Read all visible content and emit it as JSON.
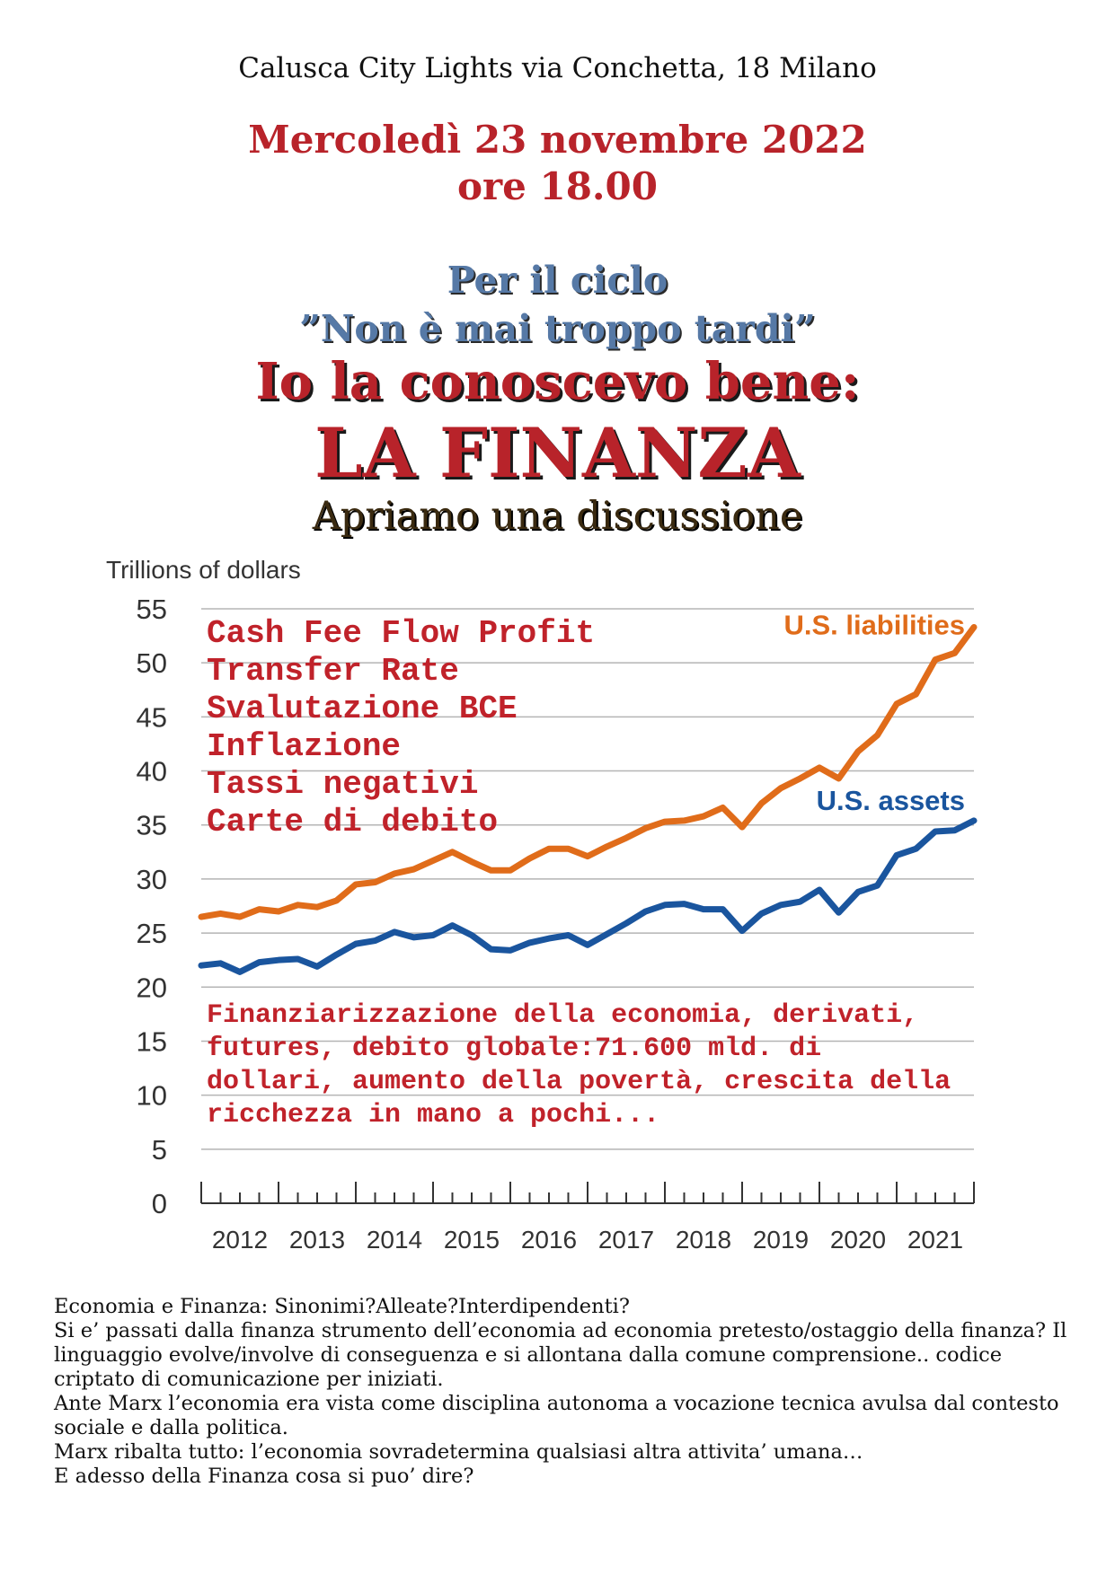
{
  "header": {
    "venue": "Calusca City Lights via Conchetta, 18 Milano",
    "date": "Mercoledì 23 novembre 2022",
    "time": "ore 18.00"
  },
  "cycle": {
    "line1": "Per il ciclo",
    "line2": "”Non è mai troppo tardi”"
  },
  "title": {
    "line1": "Io la conoscevo bene:",
    "line2": "LA FINANZA",
    "subtitle": "Apriamo una discussione"
  },
  "keywords": [
    "Cash Fee Flow Profit",
    "Transfer Rate",
    "Svalutazione BCE",
    "Inflazione",
    "Tassi negativi",
    "Carte di debito"
  ],
  "note": "Finanziarizzazione della economia, derivati, futures, debito globale:71.600 mld. di dollari, aumento della povertà, crescita della ricchezza in mano a pochi...",
  "chart_data": {
    "type": "line",
    "ylabel": "Trillions of dollars",
    "ylim": [
      0,
      55
    ],
    "yticks": [
      0,
      5,
      10,
      15,
      20,
      25,
      30,
      35,
      40,
      45,
      50,
      55
    ],
    "xlim": [
      2011.5,
      2021.5
    ],
    "xtick_labels": [
      "2012",
      "2013",
      "2014",
      "2015",
      "2016",
      "2017",
      "2018",
      "2019",
      "2020",
      "2021"
    ],
    "grid": true,
    "series": [
      {
        "name": "U.S. liabilities",
        "color": "#e06c1a",
        "x": [
          2011.5,
          2011.75,
          2012.0,
          2012.25,
          2012.5,
          2012.75,
          2013.0,
          2013.25,
          2013.5,
          2013.75,
          2014.0,
          2014.25,
          2014.5,
          2014.75,
          2015.0,
          2015.25,
          2015.5,
          2015.75,
          2016.0,
          2016.25,
          2016.5,
          2016.75,
          2017.0,
          2017.25,
          2017.5,
          2017.75,
          2018.0,
          2018.25,
          2018.5,
          2018.75,
          2019.0,
          2019.25,
          2019.5,
          2019.75,
          2020.0,
          2020.25,
          2020.5,
          2020.75,
          2021.0,
          2021.25,
          2021.5
        ],
        "values": [
          26.5,
          26.8,
          26.5,
          27.2,
          27.0,
          27.6,
          27.4,
          28.0,
          29.5,
          29.7,
          30.5,
          30.9,
          31.7,
          32.5,
          31.6,
          30.8,
          30.8,
          31.9,
          32.8,
          32.8,
          32.1,
          33.0,
          33.8,
          34.7,
          35.3,
          35.4,
          35.8,
          36.6,
          34.8,
          37.0,
          38.4,
          39.3,
          40.3,
          39.3,
          41.8,
          43.3,
          46.2,
          47.1,
          50.3,
          50.9,
          53.3
        ]
      },
      {
        "name": "U.S. assets",
        "color": "#1a559e",
        "x": [
          2011.5,
          2011.75,
          2012.0,
          2012.25,
          2012.5,
          2012.75,
          2013.0,
          2013.25,
          2013.5,
          2013.75,
          2014.0,
          2014.25,
          2014.5,
          2014.75,
          2015.0,
          2015.25,
          2015.5,
          2015.75,
          2016.0,
          2016.25,
          2016.5,
          2016.75,
          2017.0,
          2017.25,
          2017.5,
          2017.75,
          2018.0,
          2018.25,
          2018.5,
          2018.75,
          2019.0,
          2019.25,
          2019.5,
          2019.75,
          2020.0,
          2020.25,
          2020.5,
          2020.75,
          2021.0,
          2021.25,
          2021.5
        ],
        "values": [
          22.0,
          22.2,
          21.4,
          22.3,
          22.5,
          22.6,
          21.9,
          23.0,
          24.0,
          24.3,
          25.1,
          24.6,
          24.8,
          25.7,
          24.8,
          23.5,
          23.4,
          24.1,
          24.5,
          24.8,
          23.9,
          24.9,
          25.9,
          27.0,
          27.6,
          27.7,
          27.2,
          27.2,
          25.2,
          26.8,
          27.6,
          27.9,
          29.0,
          26.9,
          28.8,
          29.4,
          32.2,
          32.8,
          34.4,
          34.5,
          35.4
        ]
      }
    ]
  },
  "body": [
    "Economia e Finanza: Sinonimi?Alleate?Interdipendenti?",
    "Si e’ passati dalla finanza strumento dell’economia ad economia pretesto/ostaggio della finanza? Il linguaggio evolve/involve di conseguenza e si allontana dalla comune comprensione.. codice criptato di comunicazione per iniziati.",
    "Ante Marx l’economia era vista come disciplina autonoma a vocazione tecnica avulsa dal contesto sociale e dalla politica.",
    "Marx ribalta tutto: l’economia sovradetermina qualsiasi altra attivita’ umana…",
    "E adesso della Finanza cosa si puo’ dire?"
  ]
}
